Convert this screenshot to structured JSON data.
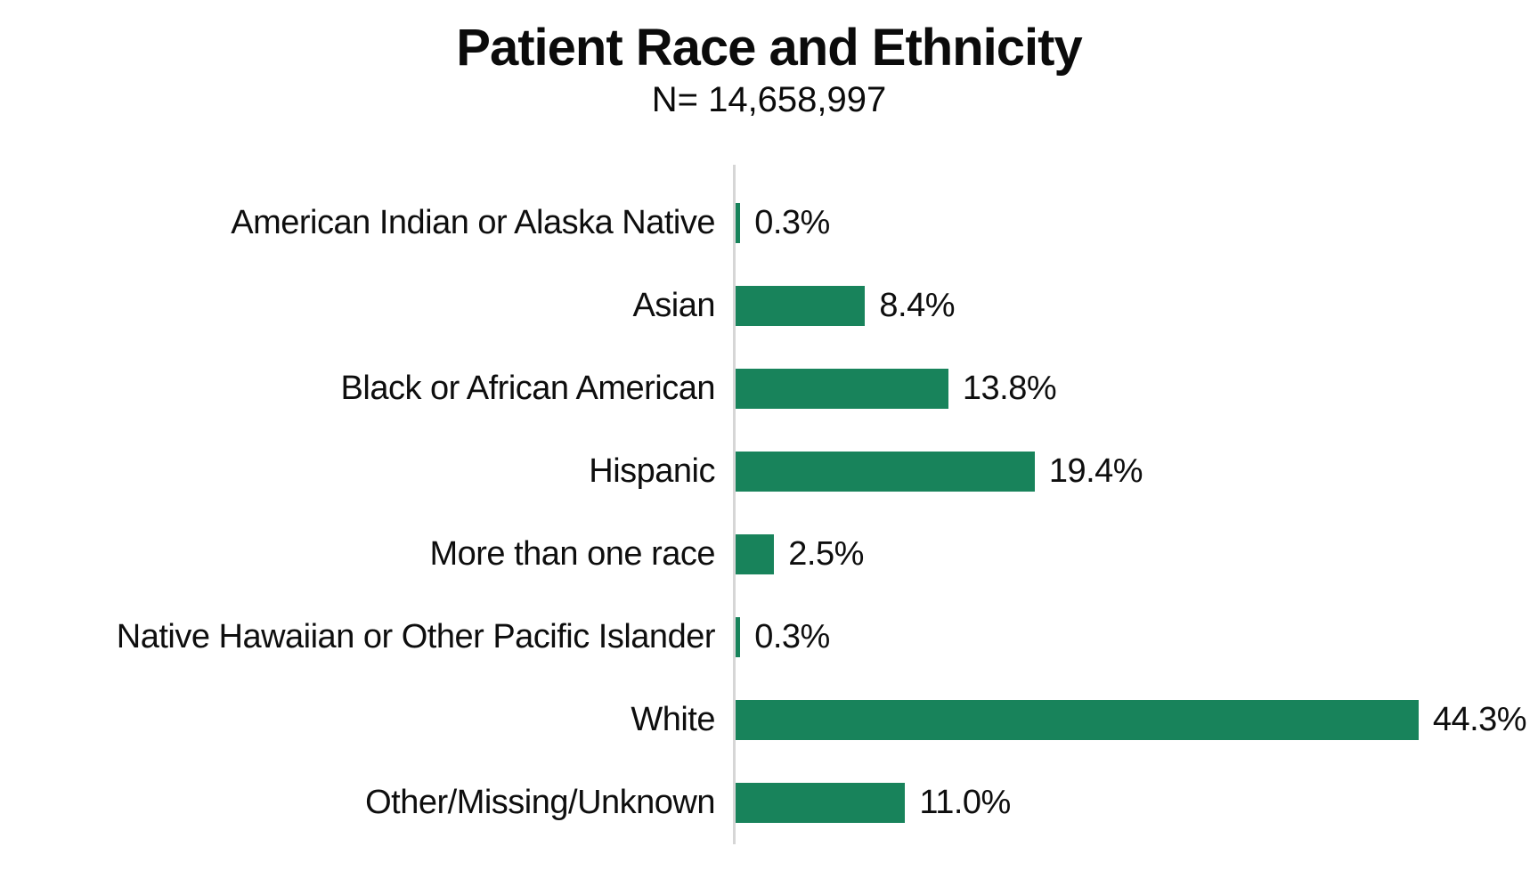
{
  "title": "Patient Race and Ethnicity",
  "subtitle": "N= 14,658,997",
  "colors": {
    "bar": "#18835B",
    "axis_line": "#d6d6d6",
    "text": "#0e0e0e",
    "background": "#ffffff"
  },
  "chart_data": {
    "type": "bar",
    "orientation": "horizontal",
    "title": "Patient Race and Ethnicity",
    "subtitle": "N= 14,658,997",
    "xlabel": "",
    "ylabel": "",
    "categories": [
      "American Indian or Alaska Native",
      "Asian",
      "Black or African American",
      "Hispanic",
      "More than one race",
      "Native Hawaiian or Other Pacific Islander",
      "White",
      "Other/Missing/Unknown"
    ],
    "values": [
      0.3,
      8.4,
      13.8,
      19.4,
      2.5,
      0.3,
      44.3,
      11.0
    ],
    "value_labels": [
      "0.3%",
      "8.4%",
      "13.8%",
      "19.4%",
      "2.5%",
      "0.3%",
      "44.3%",
      "11.0%"
    ],
    "xlim": [
      0,
      52.2
    ],
    "grid": false,
    "legend": false,
    "bar_color": "#18835B",
    "data_labels_shown": true
  }
}
